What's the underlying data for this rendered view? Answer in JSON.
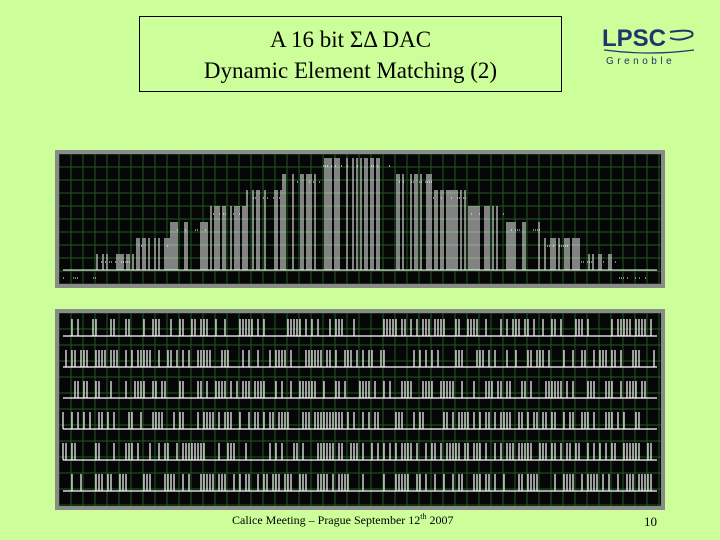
{
  "slide": {
    "title_line1": "A 16 bit ΣΔ DAC",
    "title_line2": "Dynamic Element Matching (2)",
    "logo_text": "LPSC",
    "logo_subtext": "Grenoble",
    "footer_text": "Calice Meeting – Prague September 12",
    "footer_sup": "th",
    "footer_year": " 2007",
    "page_number": "10"
  },
  "colors": {
    "background": "#ccff99",
    "scope_bg": "#060606",
    "scope_grid": "#1f5a1f",
    "trace": "#ffffff",
    "logo_blue": "#23336b"
  },
  "icons": {
    "logo": "lpsc-grenoble-logo"
  }
}
